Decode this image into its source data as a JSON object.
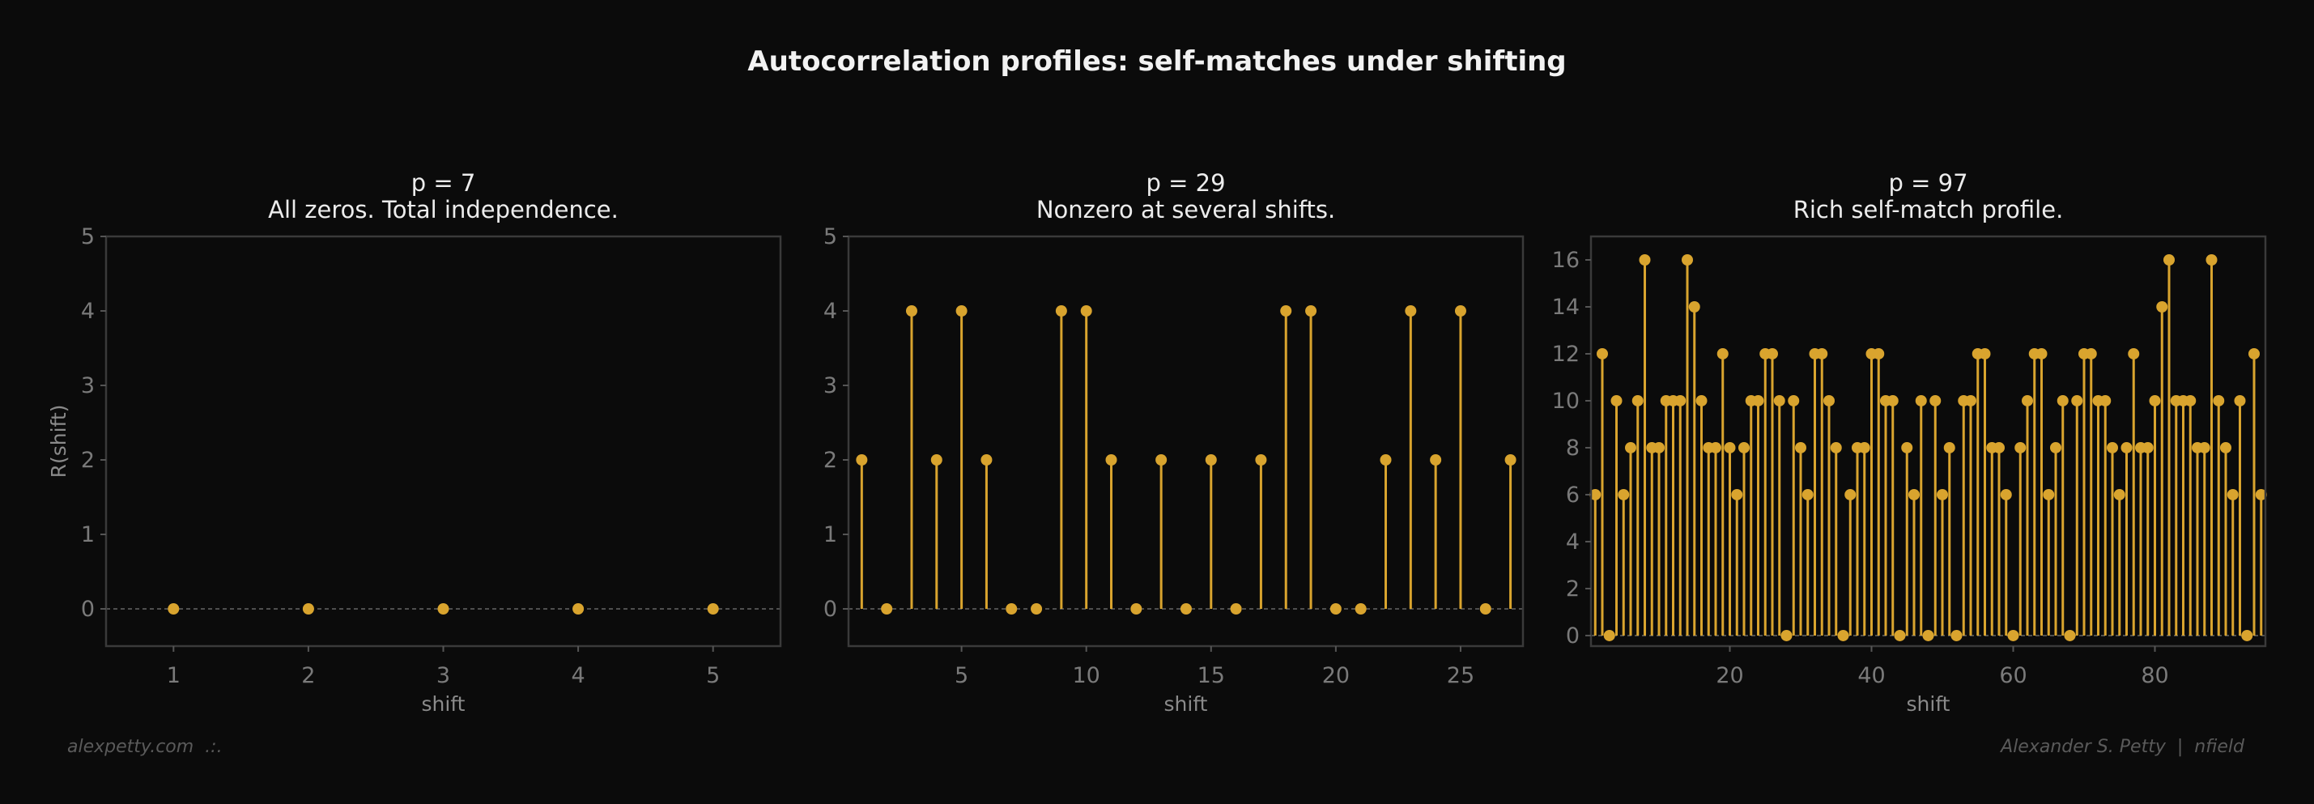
{
  "title": "Autocorrelation profiles: self-matches under shifting",
  "colors": {
    "background": "#0b0b0b",
    "stem": "#d9a42e",
    "spine": "#3a3a3a",
    "baseline": "#666666"
  },
  "footer": {
    "left": "alexpetty.com  .:.",
    "right": "Alexander S. Petty  |  nfield"
  },
  "chart_data": [
    {
      "type": "stem",
      "title": "p = 7",
      "subtitle": "All zeros. Total independence.",
      "xlabel": "shift",
      "ylabel": "R(shift)",
      "x": [
        1,
        2,
        3,
        4,
        5
      ],
      "values": [
        0,
        0,
        0,
        0,
        0
      ],
      "xlim": [
        0.5,
        5.5
      ],
      "ylim": [
        -0.5,
        5
      ],
      "xticks": [
        1,
        2,
        3,
        4,
        5
      ],
      "yticks": [
        0,
        1,
        2,
        3,
        4,
        5
      ],
      "grid": false
    },
    {
      "type": "stem",
      "title": "p = 29",
      "subtitle": "Nonzero at several shifts.",
      "xlabel": "shift",
      "ylabel": "",
      "x": [
        1,
        2,
        3,
        4,
        5,
        6,
        7,
        8,
        9,
        10,
        11,
        12,
        13,
        14,
        15,
        16,
        17,
        18,
        19,
        20,
        21,
        22,
        23,
        24,
        25,
        26,
        27
      ],
      "values": [
        2,
        0,
        4,
        2,
        4,
        2,
        0,
        0,
        4,
        4,
        2,
        0,
        2,
        0,
        2,
        0,
        2,
        4,
        4,
        0,
        0,
        2,
        4,
        2,
        4,
        0,
        2
      ],
      "xlim": [
        0.47,
        27.5
      ],
      "ylim": [
        -0.5,
        5
      ],
      "xticks": [
        5,
        10,
        15,
        20,
        25
      ],
      "yticks": [
        0,
        1,
        2,
        3,
        4,
        5
      ],
      "grid": false
    },
    {
      "type": "stem",
      "title": "p = 97",
      "subtitle": "Rich self-match profile.",
      "xlabel": "shift",
      "ylabel": "",
      "x": [
        1,
        2,
        3,
        4,
        5,
        6,
        7,
        8,
        9,
        10,
        11,
        12,
        13,
        14,
        15,
        16,
        17,
        18,
        19,
        20,
        21,
        22,
        23,
        24,
        25,
        26,
        27,
        28,
        29,
        30,
        31,
        32,
        33,
        34,
        35,
        36,
        37,
        38,
        39,
        40,
        41,
        42,
        43,
        44,
        45,
        46,
        47,
        48,
        49,
        50,
        51,
        52,
        53,
        54,
        55,
        56,
        57,
        58,
        59,
        60,
        61,
        62,
        63,
        64,
        65,
        66,
        67,
        68,
        69,
        70,
        71,
        72,
        73,
        74,
        75,
        76,
        77,
        78,
        79,
        80,
        81,
        82,
        83,
        84,
        85,
        86,
        87,
        88,
        89,
        90,
        91,
        92,
        93,
        94,
        95
      ],
      "values": [
        6,
        12,
        0,
        10,
        6,
        8,
        10,
        16,
        8,
        8,
        10,
        10,
        10,
        16,
        14,
        10,
        8,
        8,
        12,
        8,
        6,
        8,
        10,
        10,
        12,
        12,
        10,
        0,
        10,
        8,
        6,
        12,
        12,
        10,
        8,
        0,
        6,
        8,
        8,
        12,
        12,
        10,
        10,
        0,
        8,
        6,
        10,
        0,
        10,
        6,
        8,
        0,
        10,
        10,
        12,
        12,
        8,
        8,
        6,
        0,
        8,
        10,
        12,
        12,
        6,
        8,
        10,
        0,
        10,
        12,
        12,
        10,
        10,
        8,
        6,
        8,
        12,
        8,
        8,
        10,
        14,
        16,
        10,
        10,
        10,
        8,
        8,
        16,
        10,
        8,
        6,
        10,
        0,
        12,
        6
      ],
      "xlim": [
        0.4,
        95.6
      ],
      "ylim": [
        -0.45,
        17
      ],
      "xticks": [
        20,
        40,
        60,
        80
      ],
      "yticks": [
        0,
        2,
        4,
        6,
        8,
        10,
        12,
        14,
        16
      ],
      "grid": false
    }
  ]
}
